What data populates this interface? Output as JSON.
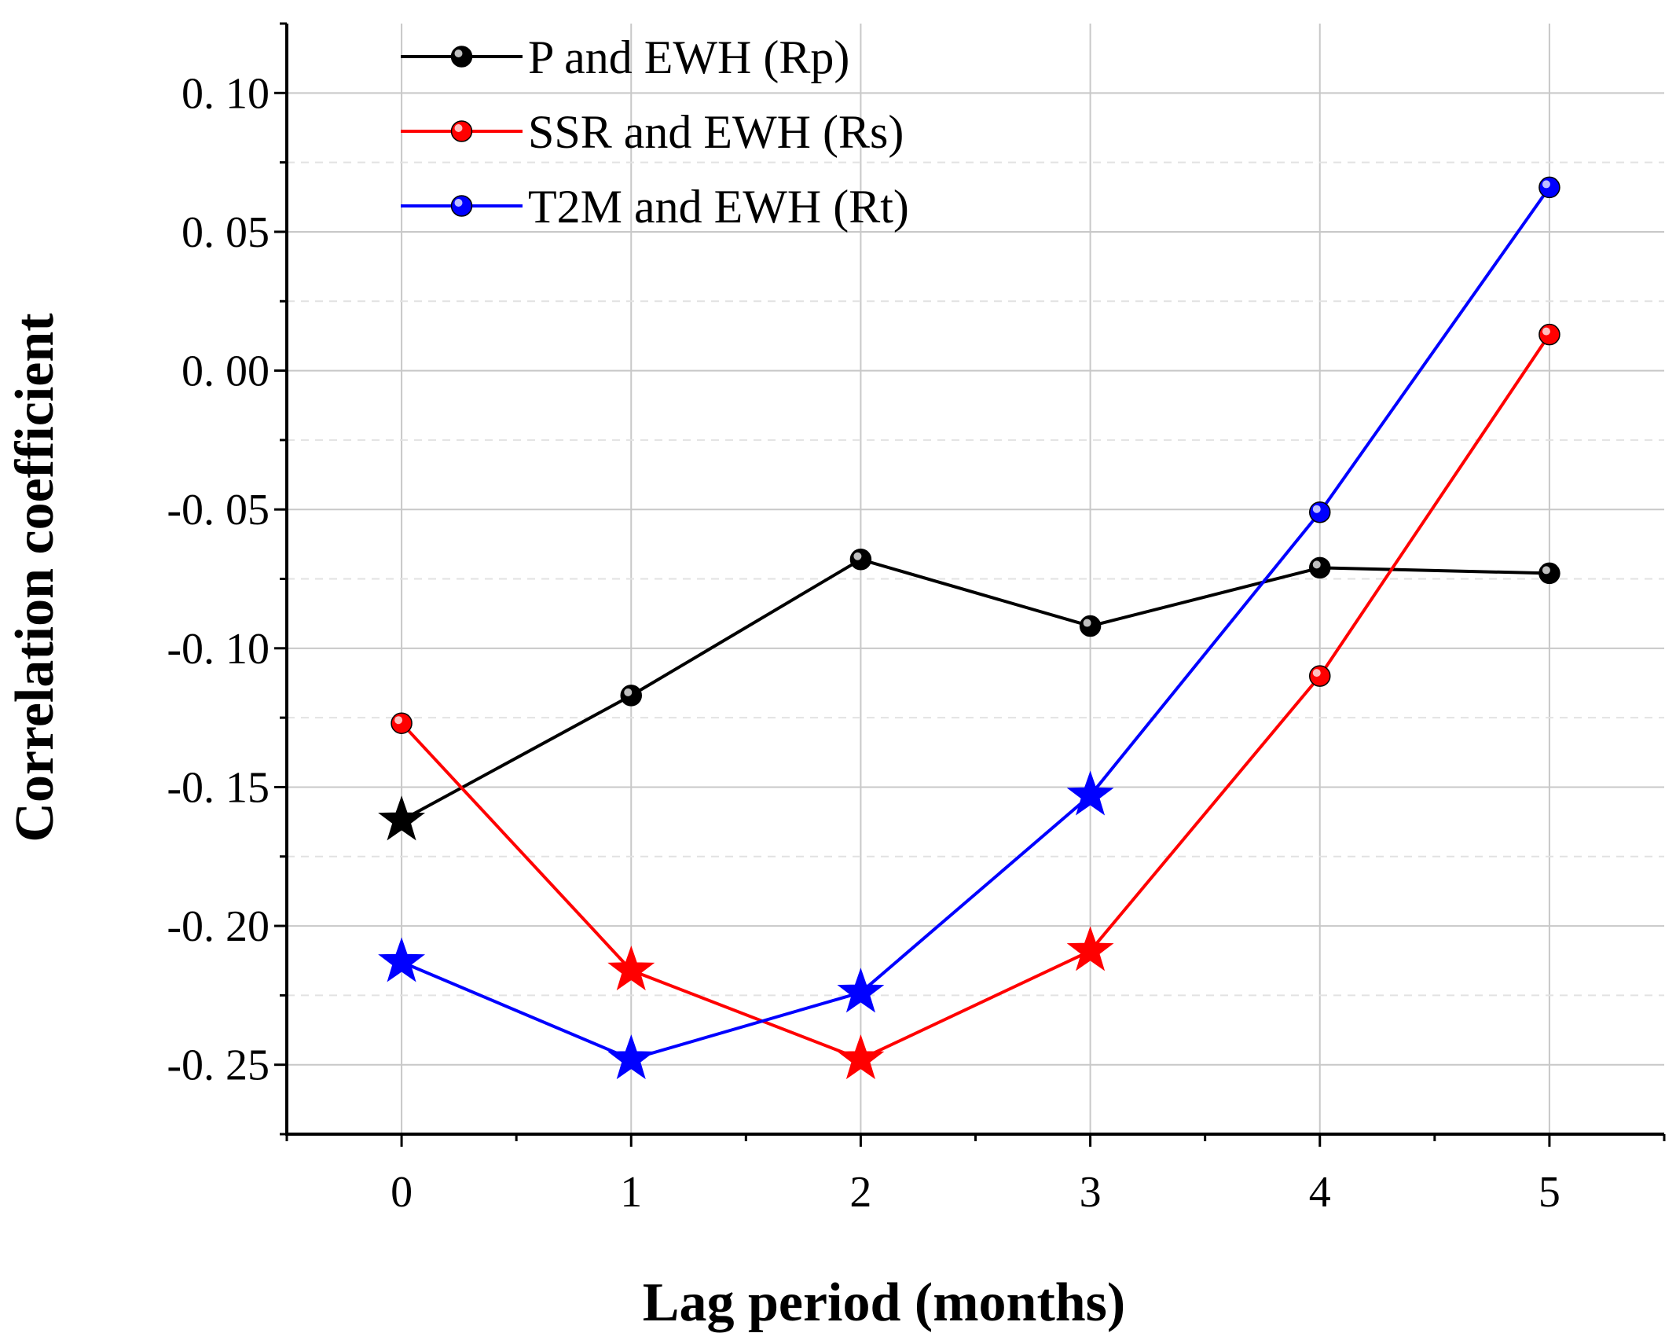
{
  "chart_data": {
    "type": "line",
    "title": "",
    "xlabel": "Lag period (months)",
    "ylabel": "Correlation coefficient",
    "x": [
      0,
      1,
      2,
      3,
      4,
      5
    ],
    "xlim": [
      -0.5,
      5.5
    ],
    "ylim": [
      -0.275,
      0.125
    ],
    "yticks": [
      -0.25,
      -0.2,
      -0.15,
      -0.1,
      -0.05,
      0.0,
      0.05,
      0.1
    ],
    "ytick_labels": [
      "-0. 25",
      "-0. 20",
      "-0. 15",
      "-0. 10",
      "-0. 05",
      "0. 00",
      "0. 05",
      "0. 10"
    ],
    "xtick_labels": [
      "0",
      "1",
      "2",
      "3",
      "4",
      "5"
    ],
    "grid": true,
    "legend_position": "top-left",
    "series": [
      {
        "name": "P and EWH (Rp)",
        "color": "#000000",
        "values": [
          -0.162,
          -0.117,
          -0.068,
          -0.092,
          -0.071,
          -0.073
        ],
        "star_markers": [
          true,
          false,
          false,
          false,
          false,
          false
        ]
      },
      {
        "name": "SSR and EWH (Rs)",
        "color": "#ff0000",
        "values": [
          -0.127,
          -0.216,
          -0.248,
          -0.209,
          -0.11,
          0.013
        ],
        "star_markers": [
          false,
          true,
          true,
          true,
          false,
          false
        ]
      },
      {
        "name": "T2M and EWH (Rt)",
        "color": "#0000ff",
        "values": [
          -0.213,
          -0.248,
          -0.224,
          -0.153,
          -0.051,
          0.066
        ],
        "star_markers": [
          true,
          true,
          true,
          true,
          false,
          false
        ]
      }
    ]
  }
}
